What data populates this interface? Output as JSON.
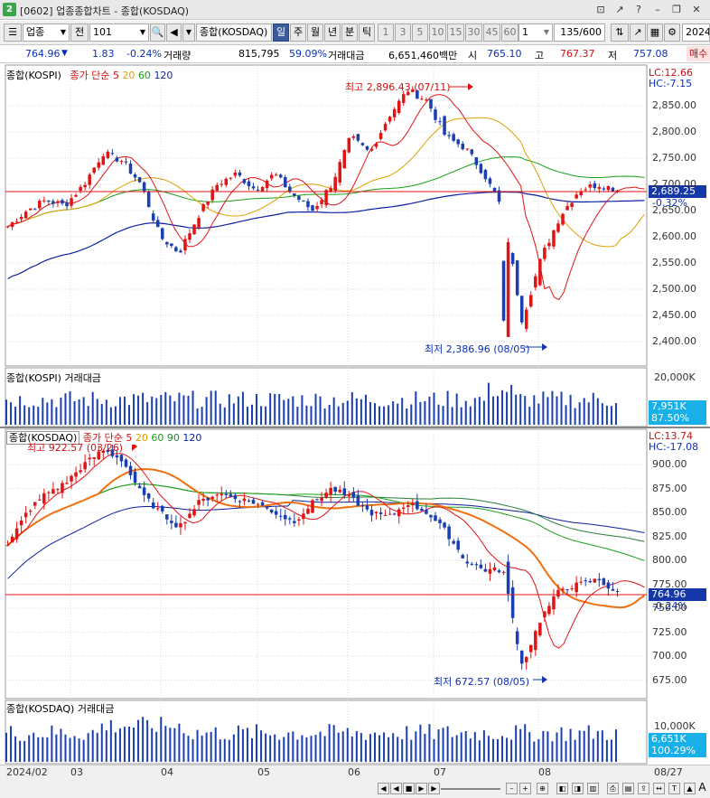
{
  "window": {
    "badge": "2",
    "title": "[0602] 업종종합차트 - 종합(KOSDAQ)"
  },
  "toolbar": {
    "market": "업종",
    "sector_code_label": "전",
    "code": "101",
    "index_name": "종합(KOSDAQ)",
    "periods": [
      "일",
      "주",
      "월",
      "년",
      "분",
      "틱"
    ],
    "selected_period": "일",
    "intervals": [
      "1",
      "3",
      "5",
      "10",
      "15",
      "30",
      "45",
      "60"
    ],
    "custom_interval": "1",
    "data_count": "135/600",
    "date": "2024/"
  },
  "quote": {
    "price": "764.96",
    "arrow": "▼",
    "change": "1.83",
    "change_rate": "-0.24%",
    "volume_label": "거래량",
    "volume": "815,795",
    "volume_ratio": "59.09%",
    "amount_label": "거래대금",
    "amount": "6,651,460백만",
    "open_label": "시",
    "open": "765.10",
    "high_label": "고",
    "high": "767.37",
    "low_label": "저",
    "low": "757.08",
    "trade_tab": "매수"
  },
  "panels": {
    "kospi": {
      "title": "종합(KOSPI)",
      "ma_label": "종가 단순",
      "ma_periods": [
        "5",
        "20",
        "60",
        "120"
      ],
      "lc": "LC:12.66",
      "hc": "HC:-7.15",
      "high_note": "최고 2,896.43 (07/11)",
      "low_note": "최저 2,386.96 (08/05)",
      "price_box": "2,689.25",
      "change_box": "-0.32%",
      "y_ticks": [
        "2,850.00",
        "2,800.00",
        "2,750.00",
        "2,700.00",
        "2,650.00",
        "2,600.00",
        "2,550.00",
        "2,500.00",
        "2,450.00",
        "2,400.00"
      ]
    },
    "kospi_vol": {
      "title": "종합(KOSPI) 거래대금",
      "y_tick": "20,000K",
      "vol_box": "7,951K",
      "ratio_box": "87.50%"
    },
    "kosdaq": {
      "title": "종합(KOSDAQ)",
      "ma_label": "종가 단순",
      "ma_periods": [
        "5",
        "20",
        "60",
        "90",
        "120"
      ],
      "lc": "LC:13.74",
      "hc": "HC:-17.08",
      "high_note": "최고 922.57 (03/26)",
      "low_note": "최저 672.57 (08/05)",
      "price_box": "764.96",
      "change_box": "-0.24%",
      "y_ticks": [
        "900.00",
        "875.00",
        "850.00",
        "825.00",
        "800.00",
        "775.00",
        "750.00",
        "725.00",
        "700.00",
        "675.00"
      ]
    },
    "kosdaq_vol": {
      "title": "종합(KOSDAQ) 거래대금",
      "y_tick": "10,000K",
      "vol_box": "6,651K",
      "ratio_box": "100.29%"
    }
  },
  "x_axis": {
    "labels": [
      "2024/02",
      "03",
      "04",
      "05",
      "06",
      "07",
      "08"
    ],
    "end_label": "08/27"
  },
  "colors": {
    "up": "#e01414",
    "down": "#1a3fb0",
    "ma5": "#e01414",
    "ma20": "#e0a000",
    "ma60": "#18a018",
    "ma90": "#2a7f3a",
    "ma120": "#0a1fa0",
    "box_blue": "#1438a8",
    "box_red": "#e01414",
    "box_cyan": "#18b0e8"
  }
}
